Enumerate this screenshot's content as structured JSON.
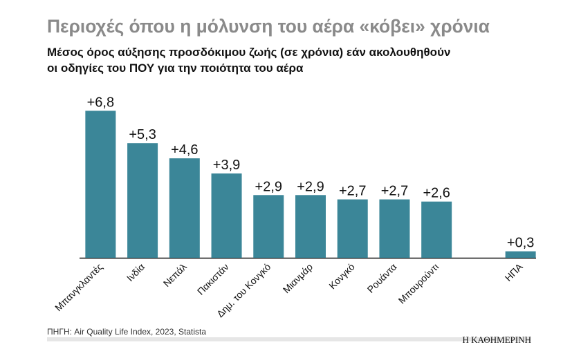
{
  "chart_data": {
    "type": "bar",
    "title": "Περιοχές όπου η μόλυνση του αέρα «κόβει» χρόνια",
    "subtitle": [
      "Μέσος όρος αύξησης προσδόκιμου ζωής (σε χρόνια) εάν ακολουθηθούν",
      "οι οδηγίες του ΠΟΥ για την ποιότητα του αέρα"
    ],
    "categories": [
      "Μπανγκλαντές",
      "Ινδία",
      "Νεπάλ",
      "Πακιστάν",
      "Δημ. του Κονγκό",
      "Μιανμάρ",
      "Κονγκό",
      "Ρουάντα",
      "Μπουρούντι",
      null,
      "ΗΠΑ"
    ],
    "values": [
      6.8,
      5.3,
      4.6,
      3.9,
      2.9,
      2.9,
      2.7,
      2.7,
      2.6,
      null,
      0.3
    ],
    "value_labels": [
      "+6,8",
      "+5,3",
      "+4,6",
      "+3,9",
      "+2,9",
      "+2,9",
      "+2,7",
      "+2,7",
      "+2,6",
      null,
      "+0,3"
    ],
    "color": "#3b8698",
    "ylim": [
      0,
      7
    ],
    "source": "ΠΗΓΗ: Air Quality Life Index, 2023, Statista",
    "publisher": "Η ΚΑΘΗΜΕΡΙΝΗ"
  }
}
